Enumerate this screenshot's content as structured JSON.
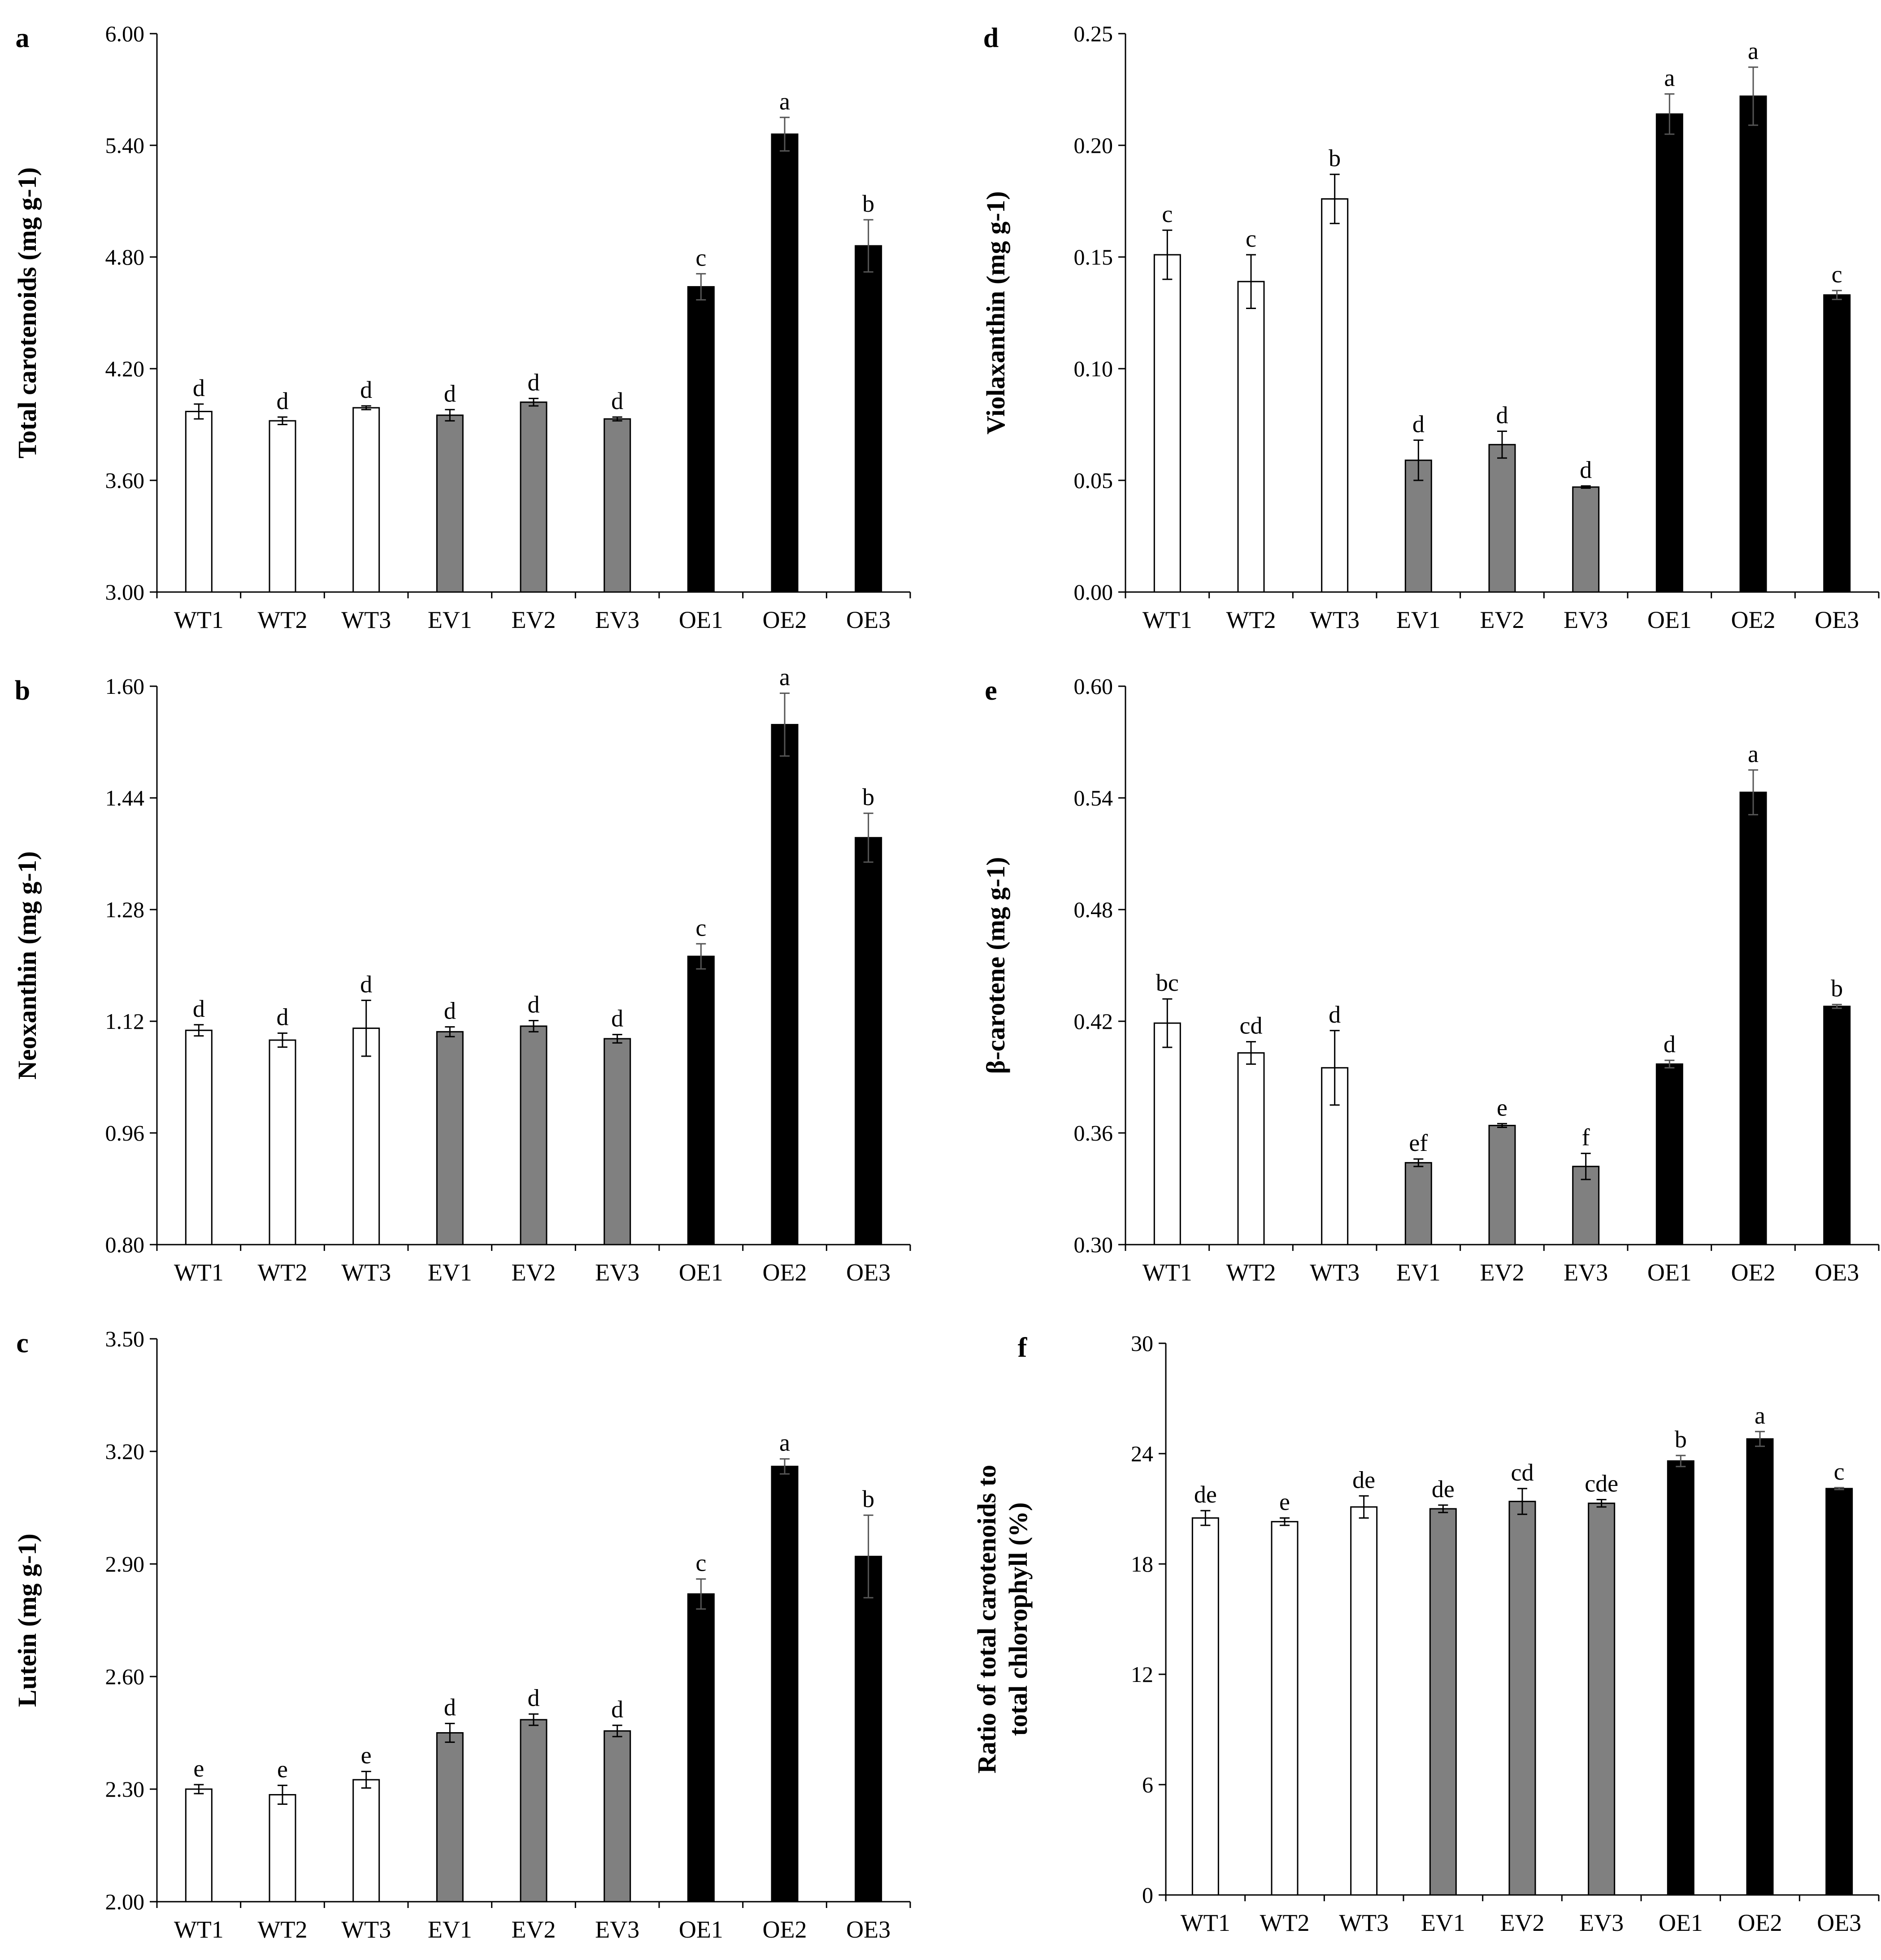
{
  "categories": [
    "WT1",
    "WT2",
    "WT3",
    "EV1",
    "EV2",
    "EV3",
    "OE1",
    "OE2",
    "OE3"
  ],
  "colors": {
    "wt_fill": "#ffffff",
    "ev_fill": "#808080",
    "oe_fill": "#000000",
    "axis": "#000000"
  },
  "chart_data": [
    {
      "panel": "a",
      "type": "bar",
      "title": "",
      "xlabel": "",
      "ylabel": "Total carotenoids (mg g-1)",
      "ylim": [
        3.0,
        6.0
      ],
      "ticks": [
        "3.00",
        "3.60",
        "4.20",
        "4.80",
        "5.40",
        "6.00"
      ],
      "categories": [
        "WT1",
        "WT2",
        "WT3",
        "EV1",
        "EV2",
        "EV3",
        "OE1",
        "OE2",
        "OE3"
      ],
      "values": [
        3.97,
        3.92,
        3.99,
        3.95,
        4.02,
        3.93,
        4.64,
        5.46,
        4.86
      ],
      "errors": [
        0.04,
        0.02,
        0.01,
        0.03,
        0.02,
        0.01,
        0.07,
        0.09,
        0.14
      ],
      "letters": [
        "d",
        "d",
        "d",
        "d",
        "d",
        "d",
        "c",
        "a",
        "b"
      ]
    },
    {
      "panel": "b",
      "type": "bar",
      "title": "",
      "xlabel": "",
      "ylabel": "Neoxanthin (mg g-1)",
      "ylim": [
        0.8,
        1.6
      ],
      "ticks": [
        "0.80",
        "0.96",
        "1.12",
        "1.28",
        "1.44",
        "1.60"
      ],
      "categories": [
        "WT1",
        "WT2",
        "WT3",
        "EV1",
        "EV2",
        "EV3",
        "OE1",
        "OE2",
        "OE3"
      ],
      "values": [
        1.107,
        1.093,
        1.11,
        1.105,
        1.113,
        1.095,
        1.213,
        1.545,
        1.383
      ],
      "errors": [
        0.008,
        0.01,
        0.04,
        0.007,
        0.008,
        0.006,
        0.018,
        0.045,
        0.035
      ],
      "letters": [
        "d",
        "d",
        "d",
        "d",
        "d",
        "d",
        "c",
        "a",
        "b"
      ]
    },
    {
      "panel": "c",
      "type": "bar",
      "title": "",
      "xlabel": "",
      "ylabel": "Lutein (mg g-1)",
      "ylim": [
        2.0,
        3.5
      ],
      "ticks": [
        "2.00",
        "2.30",
        "2.60",
        "2.90",
        "3.20",
        "3.50"
      ],
      "categories": [
        "WT1",
        "WT2",
        "WT3",
        "EV1",
        "EV2",
        "EV3",
        "OE1",
        "OE2",
        "OE3"
      ],
      "values": [
        2.3,
        2.285,
        2.325,
        2.45,
        2.485,
        2.455,
        2.82,
        3.16,
        2.92
      ],
      "errors": [
        0.012,
        0.025,
        0.022,
        0.025,
        0.015,
        0.015,
        0.04,
        0.02,
        0.11
      ],
      "letters": [
        "e",
        "e",
        "e",
        "d",
        "d",
        "d",
        "c",
        "a",
        "b"
      ]
    },
    {
      "panel": "d",
      "type": "bar",
      "title": "",
      "xlabel": "",
      "ylabel": "Violaxanthin (mg g-1)",
      "ylim": [
        0.0,
        0.25
      ],
      "ticks": [
        "0.00",
        "0.05",
        "0.10",
        "0.15",
        "0.20",
        "0.25"
      ],
      "categories": [
        "WT1",
        "WT2",
        "WT3",
        "EV1",
        "EV2",
        "EV3",
        "OE1",
        "OE2",
        "OE3"
      ],
      "values": [
        0.151,
        0.139,
        0.176,
        0.059,
        0.066,
        0.047,
        0.214,
        0.222,
        0.133
      ],
      "errors": [
        0.011,
        0.012,
        0.011,
        0.009,
        0.006,
        0.0005,
        0.009,
        0.013,
        0.002
      ],
      "letters": [
        "c",
        "c",
        "b",
        "d",
        "d",
        "d",
        "a",
        "a",
        "c"
      ]
    },
    {
      "panel": "e",
      "type": "bar",
      "title": "",
      "xlabel": "",
      "ylabel": "β-carotene (mg g-1)",
      "ylim": [
        0.3,
        0.6
      ],
      "ticks": [
        "0.30",
        "0.36",
        "0.42",
        "0.48",
        "0.54",
        "0.60"
      ],
      "categories": [
        "WT1",
        "WT2",
        "WT3",
        "EV1",
        "EV2",
        "EV3",
        "OE1",
        "OE2",
        "OE3"
      ],
      "values": [
        0.419,
        0.403,
        0.395,
        0.344,
        0.364,
        0.342,
        0.397,
        0.543,
        0.428
      ],
      "errors": [
        0.013,
        0.006,
        0.02,
        0.002,
        0.001,
        0.007,
        0.002,
        0.012,
        0.001
      ],
      "letters": [
        "bc",
        "cd",
        "d",
        "ef",
        "e",
        "f",
        "d",
        "a",
        "b"
      ]
    },
    {
      "panel": "f",
      "type": "bar",
      "title": "",
      "xlabel": "",
      "ylabel": "Ratio of total carotenoids to total chlorophyll (%)",
      "ylim": [
        0,
        30
      ],
      "ticks": [
        "0",
        "6",
        "12",
        "18",
        "24",
        "30"
      ],
      "categories": [
        "WT1",
        "WT2",
        "WT3",
        "EV1",
        "EV2",
        "EV3",
        "OE1",
        "OE2",
        "OE3"
      ],
      "values": [
        20.5,
        20.3,
        21.1,
        21.0,
        21.4,
        21.3,
        23.6,
        24.8,
        22.1
      ],
      "errors": [
        0.4,
        0.2,
        0.6,
        0.2,
        0.7,
        0.2,
        0.3,
        0.4,
        0.05
      ],
      "letters": [
        "de",
        "e",
        "de",
        "de",
        "cd",
        "cde",
        "b",
        "a",
        "c"
      ]
    }
  ]
}
